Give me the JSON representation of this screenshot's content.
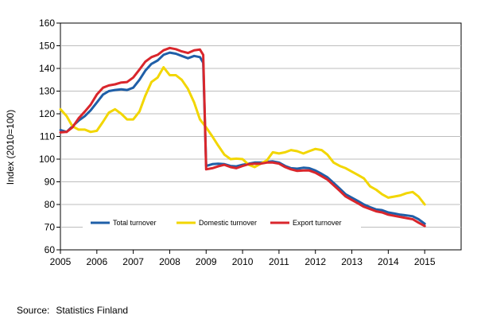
{
  "chart_data": {
    "type": "line",
    "title": "",
    "xlabel": "",
    "ylabel": "Index (2010=100)",
    "xlim": [
      2005,
      2016
    ],
    "ylim": [
      60,
      160
    ],
    "x_ticks": [
      "2005",
      "2006",
      "2007",
      "2008",
      "2009",
      "2010",
      "2011",
      "2012",
      "2013",
      "2014",
      "2015"
    ],
    "y_ticks": [
      60,
      70,
      80,
      90,
      100,
      110,
      120,
      130,
      140,
      150,
      160
    ],
    "grid": "horizontal",
    "legend_position": "bottom-inside",
    "series": [
      {
        "name": "Total turnover",
        "color": "#1f5fa8",
        "points": [
          [
            2005.0,
            112.8
          ],
          [
            2005.17,
            112.0
          ],
          [
            2005.33,
            114.5
          ],
          [
            2005.5,
            117.0
          ],
          [
            2005.67,
            119.0
          ],
          [
            2005.83,
            121.5
          ],
          [
            2006.0,
            125.0
          ],
          [
            2006.17,
            128.5
          ],
          [
            2006.33,
            130.0
          ],
          [
            2006.5,
            130.5
          ],
          [
            2006.67,
            130.8
          ],
          [
            2006.83,
            130.5
          ],
          [
            2007.0,
            131.5
          ],
          [
            2007.17,
            135.0
          ],
          [
            2007.33,
            139.0
          ],
          [
            2007.5,
            142.0
          ],
          [
            2007.67,
            143.5
          ],
          [
            2007.83,
            146.0
          ],
          [
            2008.0,
            147.0
          ],
          [
            2008.17,
            146.5
          ],
          [
            2008.33,
            145.5
          ],
          [
            2008.5,
            144.5
          ],
          [
            2008.67,
            145.5
          ],
          [
            2008.83,
            145.0
          ],
          [
            2008.92,
            142.5
          ],
          [
            2009.0,
            97.0
          ],
          [
            2009.17,
            97.8
          ],
          [
            2009.33,
            98.0
          ],
          [
            2009.5,
            97.8
          ],
          [
            2009.67,
            97.0
          ],
          [
            2009.83,
            96.8
          ],
          [
            2010.0,
            97.5
          ],
          [
            2010.17,
            98.0
          ],
          [
            2010.33,
            98.5
          ],
          [
            2010.5,
            98.5
          ],
          [
            2010.67,
            98.8
          ],
          [
            2010.83,
            99.0
          ],
          [
            2011.0,
            98.5
          ],
          [
            2011.17,
            97.0
          ],
          [
            2011.33,
            96.0
          ],
          [
            2011.5,
            95.8
          ],
          [
            2011.67,
            96.2
          ],
          [
            2011.83,
            96.0
          ],
          [
            2012.0,
            95.0
          ],
          [
            2012.17,
            93.5
          ],
          [
            2012.33,
            92.0
          ],
          [
            2012.5,
            89.5
          ],
          [
            2012.67,
            87.0
          ],
          [
            2012.83,
            84.5
          ],
          [
            2013.0,
            83.0
          ],
          [
            2013.17,
            81.5
          ],
          [
            2013.33,
            80.0
          ],
          [
            2013.5,
            78.8
          ],
          [
            2013.67,
            77.8
          ],
          [
            2013.83,
            77.5
          ],
          [
            2014.0,
            76.5
          ],
          [
            2014.17,
            76.0
          ],
          [
            2014.33,
            75.5
          ],
          [
            2014.5,
            75.2
          ],
          [
            2014.67,
            74.8
          ],
          [
            2014.83,
            73.5
          ],
          [
            2015.0,
            71.5
          ]
        ]
      },
      {
        "name": "Domestic turnover",
        "color": "#f2d600",
        "points": [
          [
            2005.0,
            122.0
          ],
          [
            2005.17,
            119.0
          ],
          [
            2005.33,
            114.5
          ],
          [
            2005.5,
            113.0
          ],
          [
            2005.67,
            113.0
          ],
          [
            2005.83,
            112.0
          ],
          [
            2006.0,
            112.5
          ],
          [
            2006.17,
            116.5
          ],
          [
            2006.33,
            120.5
          ],
          [
            2006.5,
            122.0
          ],
          [
            2006.67,
            120.0
          ],
          [
            2006.83,
            117.5
          ],
          [
            2007.0,
            117.5
          ],
          [
            2007.17,
            121.0
          ],
          [
            2007.33,
            128.0
          ],
          [
            2007.5,
            134.0
          ],
          [
            2007.67,
            136.0
          ],
          [
            2007.83,
            140.5
          ],
          [
            2008.0,
            137.0
          ],
          [
            2008.17,
            137.0
          ],
          [
            2008.33,
            135.0
          ],
          [
            2008.5,
            131.0
          ],
          [
            2008.67,
            125.0
          ],
          [
            2008.83,
            117.5
          ],
          [
            2009.0,
            114.0
          ],
          [
            2009.17,
            110.0
          ],
          [
            2009.33,
            106.0
          ],
          [
            2009.5,
            102.0
          ],
          [
            2009.67,
            100.0
          ],
          [
            2009.83,
            100.2
          ],
          [
            2010.0,
            100.0
          ],
          [
            2010.17,
            97.5
          ],
          [
            2010.33,
            96.5
          ],
          [
            2010.5,
            98.0
          ],
          [
            2010.67,
            99.5
          ],
          [
            2010.83,
            103.0
          ],
          [
            2011.0,
            102.5
          ],
          [
            2011.17,
            103.0
          ],
          [
            2011.33,
            104.0
          ],
          [
            2011.5,
            103.5
          ],
          [
            2011.67,
            102.5
          ],
          [
            2011.83,
            103.5
          ],
          [
            2012.0,
            104.5
          ],
          [
            2012.17,
            104.0
          ],
          [
            2012.33,
            102.0
          ],
          [
            2012.5,
            98.5
          ],
          [
            2012.67,
            97.0
          ],
          [
            2012.83,
            96.0
          ],
          [
            2013.0,
            94.5
          ],
          [
            2013.17,
            93.0
          ],
          [
            2013.33,
            91.5
          ],
          [
            2013.5,
            88.0
          ],
          [
            2013.67,
            86.5
          ],
          [
            2013.83,
            84.5
          ],
          [
            2014.0,
            83.0
          ],
          [
            2014.17,
            83.5
          ],
          [
            2014.33,
            84.0
          ],
          [
            2014.5,
            85.0
          ],
          [
            2014.67,
            85.5
          ],
          [
            2014.83,
            83.5
          ],
          [
            2015.0,
            80.0
          ]
        ]
      },
      {
        "name": "Export turnover",
        "color": "#d9262c",
        "points": [
          [
            2005.0,
            111.8
          ],
          [
            2005.17,
            112.0
          ],
          [
            2005.33,
            114.0
          ],
          [
            2005.5,
            118.0
          ],
          [
            2005.67,
            121.0
          ],
          [
            2005.83,
            124.0
          ],
          [
            2006.0,
            128.5
          ],
          [
            2006.17,
            131.5
          ],
          [
            2006.33,
            132.5
          ],
          [
            2006.5,
            133.0
          ],
          [
            2006.67,
            133.8
          ],
          [
            2006.83,
            134.0
          ],
          [
            2007.0,
            136.0
          ],
          [
            2007.17,
            139.5
          ],
          [
            2007.33,
            143.0
          ],
          [
            2007.5,
            145.0
          ],
          [
            2007.67,
            146.0
          ],
          [
            2007.83,
            148.0
          ],
          [
            2008.0,
            149.0
          ],
          [
            2008.17,
            148.5
          ],
          [
            2008.33,
            147.5
          ],
          [
            2008.5,
            146.8
          ],
          [
            2008.67,
            148.0
          ],
          [
            2008.83,
            148.3
          ],
          [
            2008.92,
            146.0
          ],
          [
            2009.0,
            95.5
          ],
          [
            2009.17,
            96.0
          ],
          [
            2009.33,
            96.8
          ],
          [
            2009.5,
            97.5
          ],
          [
            2009.67,
            96.5
          ],
          [
            2009.83,
            96.0
          ],
          [
            2010.0,
            97.0
          ],
          [
            2010.17,
            97.8
          ],
          [
            2010.33,
            98.0
          ],
          [
            2010.5,
            98.0
          ],
          [
            2010.67,
            98.5
          ],
          [
            2010.83,
            98.5
          ],
          [
            2011.0,
            98.0
          ],
          [
            2011.17,
            96.5
          ],
          [
            2011.33,
            95.5
          ],
          [
            2011.5,
            94.8
          ],
          [
            2011.67,
            95.0
          ],
          [
            2011.83,
            95.0
          ],
          [
            2012.0,
            94.0
          ],
          [
            2012.17,
            92.5
          ],
          [
            2012.33,
            91.0
          ],
          [
            2012.5,
            88.5
          ],
          [
            2012.67,
            86.0
          ],
          [
            2012.83,
            83.5
          ],
          [
            2013.0,
            82.0
          ],
          [
            2013.17,
            80.5
          ],
          [
            2013.33,
            79.0
          ],
          [
            2013.5,
            78.0
          ],
          [
            2013.67,
            77.0
          ],
          [
            2013.83,
            76.5
          ],
          [
            2014.0,
            75.5
          ],
          [
            2014.17,
            75.0
          ],
          [
            2014.33,
            74.5
          ],
          [
            2014.5,
            74.0
          ],
          [
            2014.67,
            73.5
          ],
          [
            2014.83,
            72.0
          ],
          [
            2015.0,
            70.5
          ]
        ]
      }
    ]
  },
  "source": {
    "label": "Source:",
    "value": "Statistics Finland"
  }
}
